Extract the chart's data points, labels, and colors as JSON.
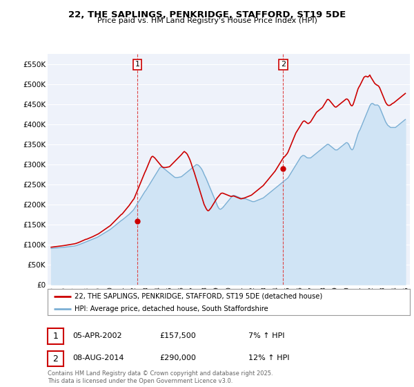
{
  "title": "22, THE SAPLINGS, PENKRIDGE, STAFFORD, ST19 5DE",
  "subtitle": "Price paid vs. HM Land Registry's House Price Index (HPI)",
  "ylabel_ticks": [
    "£0",
    "£50K",
    "£100K",
    "£150K",
    "£200K",
    "£250K",
    "£300K",
    "£350K",
    "£400K",
    "£450K",
    "£500K",
    "£550K"
  ],
  "ytick_values": [
    0,
    50000,
    100000,
    150000,
    200000,
    250000,
    300000,
    350000,
    400000,
    450000,
    500000,
    550000
  ],
  "ylim": [
    0,
    575000
  ],
  "xlim_start": 1994.7,
  "xlim_end": 2025.3,
  "annotation1": {
    "label": "1",
    "date_str": "05-APR-2002",
    "x_val": 2002.27,
    "y_val": 157500,
    "price": "£157,500",
    "pct": "7% ↑ HPI"
  },
  "annotation2": {
    "label": "2",
    "date_str": "08-AUG-2014",
    "x_val": 2014.6,
    "y_val": 290000,
    "price": "£290,000",
    "pct": "12% ↑ HPI"
  },
  "red_line_color": "#cc0000",
  "blue_line_color": "#7bafd4",
  "blue_fill_color": "#d0e4f5",
  "annotation_line_color": "#dd4444",
  "background_color": "#ffffff",
  "plot_bg_color": "#eef2fa",
  "grid_color": "#ffffff",
  "legend_label_red": "22, THE SAPLINGS, PENKRIDGE, STAFFORD, ST19 5DE (detached house)",
  "legend_label_blue": "HPI: Average price, detached house, South Staffordshire",
  "footer": "Contains HM Land Registry data © Crown copyright and database right 2025.\nThis data is licensed under the Open Government Licence v3.0.",
  "hpi_years": [
    1995.0,
    1995.083,
    1995.167,
    1995.25,
    1995.333,
    1995.417,
    1995.5,
    1995.583,
    1995.667,
    1995.75,
    1995.833,
    1995.917,
    1996.0,
    1996.083,
    1996.167,
    1996.25,
    1996.333,
    1996.417,
    1996.5,
    1996.583,
    1996.667,
    1996.75,
    1996.833,
    1996.917,
    1997.0,
    1997.083,
    1997.167,
    1997.25,
    1997.333,
    1997.417,
    1997.5,
    1997.583,
    1997.667,
    1997.75,
    1997.833,
    1997.917,
    1998.0,
    1998.083,
    1998.167,
    1998.25,
    1998.333,
    1998.417,
    1998.5,
    1998.583,
    1998.667,
    1998.75,
    1998.833,
    1998.917,
    1999.0,
    1999.083,
    1999.167,
    1999.25,
    1999.333,
    1999.417,
    1999.5,
    1999.583,
    1999.667,
    1999.75,
    1999.833,
    1999.917,
    2000.0,
    2000.083,
    2000.167,
    2000.25,
    2000.333,
    2000.417,
    2000.5,
    2000.583,
    2000.667,
    2000.75,
    2000.833,
    2000.917,
    2001.0,
    2001.083,
    2001.167,
    2001.25,
    2001.333,
    2001.417,
    2001.5,
    2001.583,
    2001.667,
    2001.75,
    2001.833,
    2001.917,
    2002.0,
    2002.083,
    2002.167,
    2002.25,
    2002.333,
    2002.417,
    2002.5,
    2002.583,
    2002.667,
    2002.75,
    2002.833,
    2002.917,
    2003.0,
    2003.083,
    2003.167,
    2003.25,
    2003.333,
    2003.417,
    2003.5,
    2003.583,
    2003.667,
    2003.75,
    2003.833,
    2003.917,
    2004.0,
    2004.083,
    2004.167,
    2004.25,
    2004.333,
    2004.417,
    2004.5,
    2004.583,
    2004.667,
    2004.75,
    2004.833,
    2004.917,
    2005.0,
    2005.083,
    2005.167,
    2005.25,
    2005.333,
    2005.417,
    2005.5,
    2005.583,
    2005.667,
    2005.75,
    2005.833,
    2005.917,
    2006.0,
    2006.083,
    2006.167,
    2006.25,
    2006.333,
    2006.417,
    2006.5,
    2006.583,
    2006.667,
    2006.75,
    2006.833,
    2006.917,
    2007.0,
    2007.083,
    2007.167,
    2007.25,
    2007.333,
    2007.417,
    2007.5,
    2007.583,
    2007.667,
    2007.75,
    2007.833,
    2007.917,
    2008.0,
    2008.083,
    2008.167,
    2008.25,
    2008.333,
    2008.417,
    2008.5,
    2008.583,
    2008.667,
    2008.75,
    2008.833,
    2008.917,
    2009.0,
    2009.083,
    2009.167,
    2009.25,
    2009.333,
    2009.417,
    2009.5,
    2009.583,
    2009.667,
    2009.75,
    2009.833,
    2009.917,
    2010.0,
    2010.083,
    2010.167,
    2010.25,
    2010.333,
    2010.417,
    2010.5,
    2010.583,
    2010.667,
    2010.75,
    2010.833,
    2010.917,
    2011.0,
    2011.083,
    2011.167,
    2011.25,
    2011.333,
    2011.417,
    2011.5,
    2011.583,
    2011.667,
    2011.75,
    2011.833,
    2011.917,
    2012.0,
    2012.083,
    2012.167,
    2012.25,
    2012.333,
    2012.417,
    2012.5,
    2012.583,
    2012.667,
    2012.75,
    2012.833,
    2012.917,
    2013.0,
    2013.083,
    2013.167,
    2013.25,
    2013.333,
    2013.417,
    2013.5,
    2013.583,
    2013.667,
    2013.75,
    2013.833,
    2013.917,
    2014.0,
    2014.083,
    2014.167,
    2014.25,
    2014.333,
    2014.417,
    2014.5,
    2014.583,
    2014.667,
    2014.75,
    2014.833,
    2014.917,
    2015.0,
    2015.083,
    2015.167,
    2015.25,
    2015.333,
    2015.417,
    2015.5,
    2015.583,
    2015.667,
    2015.75,
    2015.833,
    2015.917,
    2016.0,
    2016.083,
    2016.167,
    2016.25,
    2016.333,
    2016.417,
    2016.5,
    2016.583,
    2016.667,
    2016.75,
    2016.833,
    2016.917,
    2017.0,
    2017.083,
    2017.167,
    2017.25,
    2017.333,
    2017.417,
    2017.5,
    2017.583,
    2017.667,
    2017.75,
    2017.833,
    2017.917,
    2018.0,
    2018.083,
    2018.167,
    2018.25,
    2018.333,
    2018.417,
    2018.5,
    2018.583,
    2018.667,
    2018.75,
    2018.833,
    2018.917,
    2019.0,
    2019.083,
    2019.167,
    2019.25,
    2019.333,
    2019.417,
    2019.5,
    2019.583,
    2019.667,
    2019.75,
    2019.833,
    2019.917,
    2020.0,
    2020.083,
    2020.167,
    2020.25,
    2020.333,
    2020.417,
    2020.5,
    2020.583,
    2020.667,
    2020.75,
    2020.833,
    2020.917,
    2021.0,
    2021.083,
    2021.167,
    2021.25,
    2021.333,
    2021.417,
    2021.5,
    2021.583,
    2021.667,
    2021.75,
    2021.833,
    2021.917,
    2022.0,
    2022.083,
    2022.167,
    2022.25,
    2022.333,
    2022.417,
    2022.5,
    2022.583,
    2022.667,
    2022.75,
    2022.833,
    2022.917,
    2023.0,
    2023.083,
    2023.167,
    2023.25,
    2023.333,
    2023.417,
    2023.5,
    2023.583,
    2023.667,
    2023.75,
    2023.833,
    2023.917,
    2024.0,
    2024.083,
    2024.167,
    2024.25,
    2024.333,
    2024.417,
    2024.5,
    2024.583,
    2024.667,
    2024.75,
    2024.833,
    2024.917
  ],
  "hpi_vals": [
    90000,
    90200,
    90400,
    90600,
    90800,
    91000,
    91200,
    91400,
    91600,
    91800,
    92000,
    92200,
    92500,
    92800,
    93100,
    93400,
    93700,
    94000,
    94300,
    94600,
    94900,
    95200,
    95500,
    95800,
    96200,
    96800,
    97500,
    98300,
    99200,
    100100,
    101000,
    102000,
    103000,
    104000,
    105000,
    106000,
    107000,
    108000,
    109000,
    110000,
    111000,
    112000,
    113000,
    114000,
    115000,
    116000,
    117000,
    118000,
    119500,
    121000,
    122500,
    124000,
    125500,
    127000,
    128500,
    130000,
    131500,
    133000,
    134500,
    136000,
    137500,
    139500,
    141500,
    143500,
    145500,
    147500,
    149500,
    151500,
    153500,
    155500,
    157500,
    159500,
    161000,
    163000,
    165000,
    167000,
    169000,
    171000,
    173000,
    175000,
    177500,
    180000,
    182500,
    185000,
    188000,
    192000,
    196000,
    200000,
    204000,
    208000,
    212000,
    216000,
    220000,
    224000,
    228000,
    232000,
    235000,
    239000,
    243000,
    247000,
    251000,
    255000,
    259000,
    263000,
    267000,
    271000,
    275000,
    279000,
    283000,
    287000,
    291000,
    293000,
    293000,
    292000,
    290000,
    288000,
    286000,
    284000,
    282000,
    280000,
    278000,
    276000,
    274000,
    272000,
    270000,
    268000,
    267000,
    267000,
    267000,
    267500,
    268000,
    268500,
    269000,
    271000,
    273000,
    275000,
    277000,
    279000,
    281000,
    283000,
    285000,
    287000,
    289000,
    291000,
    293000,
    295000,
    297000,
    299000,
    299000,
    298000,
    296000,
    293000,
    290000,
    286000,
    281000,
    275000,
    270000,
    265000,
    259000,
    253000,
    247000,
    241000,
    235000,
    229000,
    223000,
    217000,
    211000,
    205000,
    199000,
    194000,
    190000,
    188000,
    188000,
    190000,
    192000,
    195000,
    198000,
    201000,
    204000,
    207000,
    210000,
    213000,
    216000,
    219000,
    222000,
    222000,
    222000,
    221000,
    220000,
    219000,
    218000,
    217000,
    216000,
    215000,
    214000,
    214000,
    214000,
    214000,
    213000,
    212000,
    211000,
    210000,
    209000,
    208000,
    207000,
    207000,
    207000,
    208000,
    209000,
    210000,
    211000,
    212000,
    213000,
    214000,
    215000,
    216000,
    218000,
    220000,
    222000,
    224000,
    226000,
    228000,
    230000,
    232000,
    234000,
    236000,
    238000,
    240000,
    242000,
    244000,
    246000,
    248000,
    250000,
    252000,
    254000,
    256000,
    258000,
    260000,
    262000,
    264000,
    266000,
    270000,
    274000,
    278000,
    282000,
    286000,
    290000,
    294000,
    298000,
    302000,
    306000,
    310000,
    314000,
    318000,
    320000,
    322000,
    322000,
    321000,
    319000,
    317000,
    316000,
    316000,
    316000,
    316000,
    318000,
    320000,
    322000,
    324000,
    326000,
    328000,
    330000,
    332000,
    334000,
    336000,
    338000,
    340000,
    342000,
    344000,
    346000,
    348000,
    350000,
    350000,
    348000,
    346000,
    344000,
    342000,
    340000,
    338000,
    336000,
    336000,
    336000,
    338000,
    340000,
    342000,
    344000,
    346000,
    348000,
    350000,
    352000,
    354000,
    354000,
    352000,
    348000,
    342000,
    338000,
    336000,
    338000,
    344000,
    352000,
    360000,
    368000,
    376000,
    382000,
    386000,
    392000,
    398000,
    404000,
    410000,
    416000,
    422000,
    428000,
    434000,
    440000,
    446000,
    450000,
    452000,
    452000,
    450000,
    448000,
    448000,
    448000,
    448000,
    446000,
    442000,
    436000,
    430000,
    424000,
    418000,
    412000,
    406000,
    402000,
    398000,
    396000,
    394000,
    392000,
    392000,
    392000,
    392000,
    392000,
    392000,
    394000,
    396000,
    398000,
    400000,
    402000,
    404000,
    406000,
    408000,
    410000,
    412000
  ],
  "red_vals": [
    93000,
    93300,
    93600,
    93900,
    94200,
    94500,
    94800,
    95100,
    95400,
    95700,
    96000,
    96300,
    96700,
    97100,
    97500,
    97900,
    98300,
    98700,
    99100,
    99500,
    99900,
    100300,
    100700,
    101100,
    101600,
    102300,
    103100,
    104000,
    105000,
    106000,
    107100,
    108200,
    109300,
    110400,
    111500,
    112600,
    113000,
    114000,
    115000,
    116000,
    117000,
    118000,
    119200,
    120400,
    121600,
    122800,
    124000,
    125200,
    126500,
    128200,
    129900,
    131600,
    133300,
    135000,
    136700,
    138400,
    140100,
    141800,
    143500,
    145200,
    147000,
    149500,
    152000,
    154500,
    157000,
    159500,
    162000,
    164500,
    167000,
    169500,
    172000,
    174500,
    176000,
    179000,
    182000,
    185000,
    188000,
    191000,
    194000,
    197000,
    200500,
    204000,
    207500,
    211000,
    214000,
    220000,
    226000,
    232000,
    238000,
    244000,
    250000,
    256000,
    262000,
    268000,
    274000,
    280000,
    285000,
    291000,
    297000,
    303000,
    309000,
    315000,
    319000,
    320000,
    318000,
    316000,
    313000,
    310000,
    307000,
    304000,
    301000,
    298000,
    295000,
    293000,
    292000,
    292000,
    292000,
    292500,
    293000,
    293500,
    294000,
    296500,
    299000,
    301500,
    304000,
    306500,
    309000,
    311500,
    314000,
    316500,
    319000,
    321500,
    324000,
    327000,
    330000,
    332000,
    330000,
    328000,
    325000,
    320000,
    315000,
    309000,
    302000,
    294000,
    287000,
    280000,
    272000,
    264000,
    256000,
    248000,
    240000,
    232000,
    224000,
    216000,
    208000,
    200000,
    195000,
    190000,
    186000,
    184000,
    185000,
    188000,
    191000,
    195000,
    199000,
    203000,
    207000,
    211000,
    215000,
    218000,
    221000,
    224000,
    227000,
    228000,
    228000,
    227000,
    226000,
    225000,
    224000,
    223000,
    222000,
    221000,
    220000,
    220000,
    220500,
    221000,
    220000,
    219000,
    218000,
    217000,
    216000,
    215000,
    214000,
    214000,
    215000,
    215500,
    216000,
    217000,
    218000,
    219000,
    220000,
    221000,
    222000,
    223000,
    225000,
    227000,
    229000,
    231000,
    233000,
    235000,
    237000,
    239000,
    241000,
    243000,
    245000,
    247000,
    250000,
    253000,
    256000,
    259000,
    262000,
    265000,
    268000,
    271000,
    274000,
    277000,
    280000,
    283000,
    287000,
    291000,
    295000,
    299000,
    303000,
    307000,
    311000,
    315000,
    318000,
    320000,
    323000,
    326000,
    330000,
    336000,
    342000,
    348000,
    354000,
    360000,
    366000,
    372000,
    378000,
    382000,
    386000,
    390000,
    394000,
    398000,
    402000,
    406000,
    408000,
    408000,
    406000,
    404000,
    402000,
    402000,
    404000,
    406000,
    410000,
    414000,
    418000,
    422000,
    426000,
    430000,
    432000,
    434000,
    436000,
    438000,
    440000,
    442000,
    446000,
    450000,
    454000,
    458000,
    462000,
    462000,
    460000,
    457000,
    454000,
    451000,
    448000,
    445000,
    443000,
    443000,
    445000,
    447000,
    449000,
    451000,
    453000,
    455000,
    457000,
    459000,
    461000,
    463000,
    463000,
    461000,
    457000,
    451000,
    447000,
    446000,
    449000,
    456000,
    464000,
    472000,
    480000,
    488000,
    493000,
    497000,
    502000,
    507000,
    512000,
    517000,
    519000,
    520000,
    519000,
    518000,
    520000,
    523000,
    518000,
    514000,
    510000,
    506000,
    502000,
    500000,
    498000,
    497000,
    495000,
    491000,
    485000,
    479000,
    473000,
    467000,
    461000,
    455000,
    451000,
    448000,
    447000,
    447000,
    448000,
    450000,
    452000,
    453000,
    455000,
    457000,
    459000,
    461000,
    463000,
    465000,
    467000,
    469000,
    471000,
    473000,
    475000,
    477000
  ]
}
